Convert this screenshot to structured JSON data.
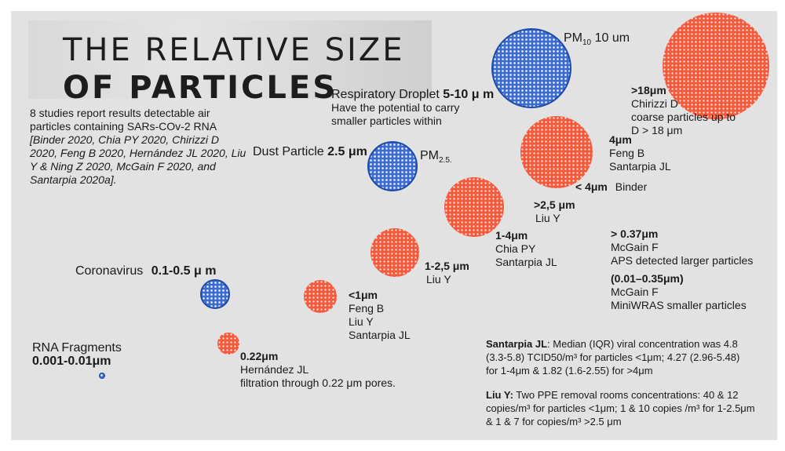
{
  "title": {
    "line1": "THE RELATIVE SIZE",
    "line2": "OF PARTICLES"
  },
  "intro": {
    "line1": "8 studies report results detectable air",
    "line2": "particles containing SARs-COv-2 RNA",
    "refs": [
      "[Binder 2020, Chia PY 2020, Chirizzi D",
      "2020, Feng B 2020, Hernández JL 2020, Liu",
      "Y & Ning Z 2020, McGain F 2020, and",
      "Santarpia 2020a]."
    ]
  },
  "blue_labels": {
    "rna_name": "RNA Fragments",
    "rna_size": "0.001-0.01μm",
    "corona_name": "Coronavirus",
    "corona_size": "0.1-0.5 μ m",
    "dust_name": "Dust Particle",
    "dust_size": "2.5 μm",
    "pm25_main": "PM",
    "pm25_sub": "2.5.",
    "droplet_name": "Respiratory Droplet",
    "droplet_size": "5-10 μ m",
    "droplet_line2": "Have the potential to carry",
    "droplet_line3": "smaller particles within",
    "pm10_main": "PM",
    "pm10_sub": "10",
    "pm10_tail": " 10 um"
  },
  "red_labels": {
    "p022": {
      "size": "0.22μm",
      "lines": [
        "Hernández JL",
        "filtration through 0.22 μm pores."
      ]
    },
    "p_lt1": {
      "size": "<1μm",
      "lines": [
        "Feng B",
        "Liu Y",
        "Santarpia JL"
      ]
    },
    "p12_5": {
      "size": "1-2,5 μm",
      "lines": [
        "Liu Y"
      ]
    },
    "p1_4": {
      "size": "1-4μm",
      "lines": [
        "Chia PY",
        "Santarpia JL"
      ]
    },
    "p_gt2_5": {
      "size": ">2,5 μm",
      "lines": [
        "Liu Y"
      ]
    },
    "p_lt4": {
      "size": "< 4μm",
      "tail": "Binder"
    },
    "p4": {
      "size": "4μm",
      "lines": [
        "Feng B",
        "Santarpia JL"
      ]
    },
    "p18": {
      "size": ">18μm",
      "lines": [
        "Chirizzi D",
        "coarse particles up to",
        "D > 18 μm"
      ]
    }
  },
  "mcgain": {
    "a_size": "> 0.37μm",
    "a_lines": [
      "McGain F",
      "APS detected larger particles"
    ],
    "b_size": "(0.01–0.35μm)",
    "b_lines": [
      "McGain F",
      "MiniWRAS smaller particles"
    ]
  },
  "notes": {
    "santarpia_head": "Santarpia JL",
    "santarpia_first": ": Median (IQR) viral concentration was 4.8",
    "santarpia_lines": [
      "(3.3-5.8) TCID50/m³ for particles <1μm; 4.27 (2.96-5.48)",
      "for 1-4μm & 1.82 (1.6-2.55) for >4μm"
    ],
    "liu_head": "Liu Y:",
    "liu_first": " Two PPE removal rooms concentrations: 40 & 12",
    "liu_lines": [
      "copies/m³ for particles <1μm; 1 & 10 copies /m³ for 1-2.5μm",
      "& 1 & 7 for copies/m³ >2.5 μm"
    ]
  },
  "colors": {
    "red": "#f55a3c",
    "blue": "#3d6cd0",
    "panel": "#e2e2e2"
  }
}
